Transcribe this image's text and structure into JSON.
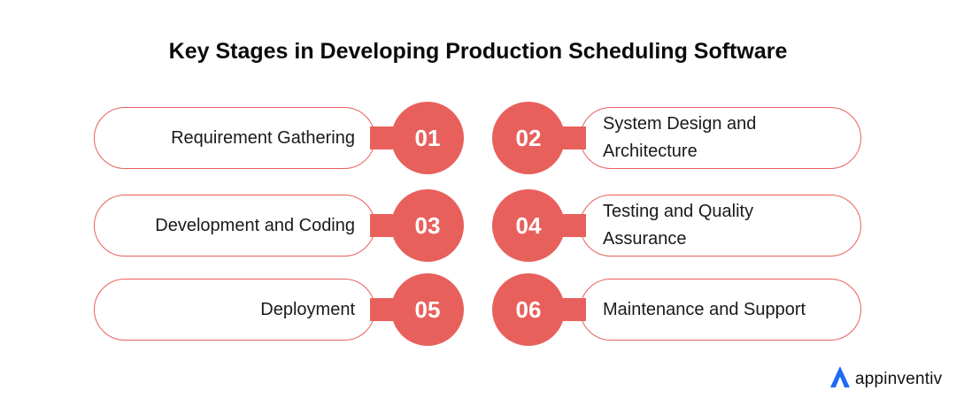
{
  "title": "Key Stages in Developing Production Scheduling Software",
  "stages": [
    {
      "number": "01",
      "label": "Requirement Gathering",
      "lines": [
        "Requirement Gathering"
      ]
    },
    {
      "number": "02",
      "label": "System Design and Architecture",
      "lines": [
        "System Design and",
        "Architecture"
      ]
    },
    {
      "number": "03",
      "label": "Development and Coding",
      "lines": [
        "Development and Coding"
      ]
    },
    {
      "number": "04",
      "label": "Testing and Quality Assurance",
      "lines": [
        "Testing and Quality",
        "Assurance"
      ]
    },
    {
      "number": "05",
      "label": "Deployment",
      "lines": [
        "Deployment"
      ]
    },
    {
      "number": "06",
      "label": "Maintenance and Support",
      "lines": [
        "Maintenance and Support"
      ]
    }
  ],
  "brand": {
    "name": "appinventiv",
    "icon": "appinventiv-logo-icon"
  },
  "colors": {
    "accent": "#e8605c",
    "brand_blue": "#1f6cf4",
    "text": "#1a1a1a"
  }
}
